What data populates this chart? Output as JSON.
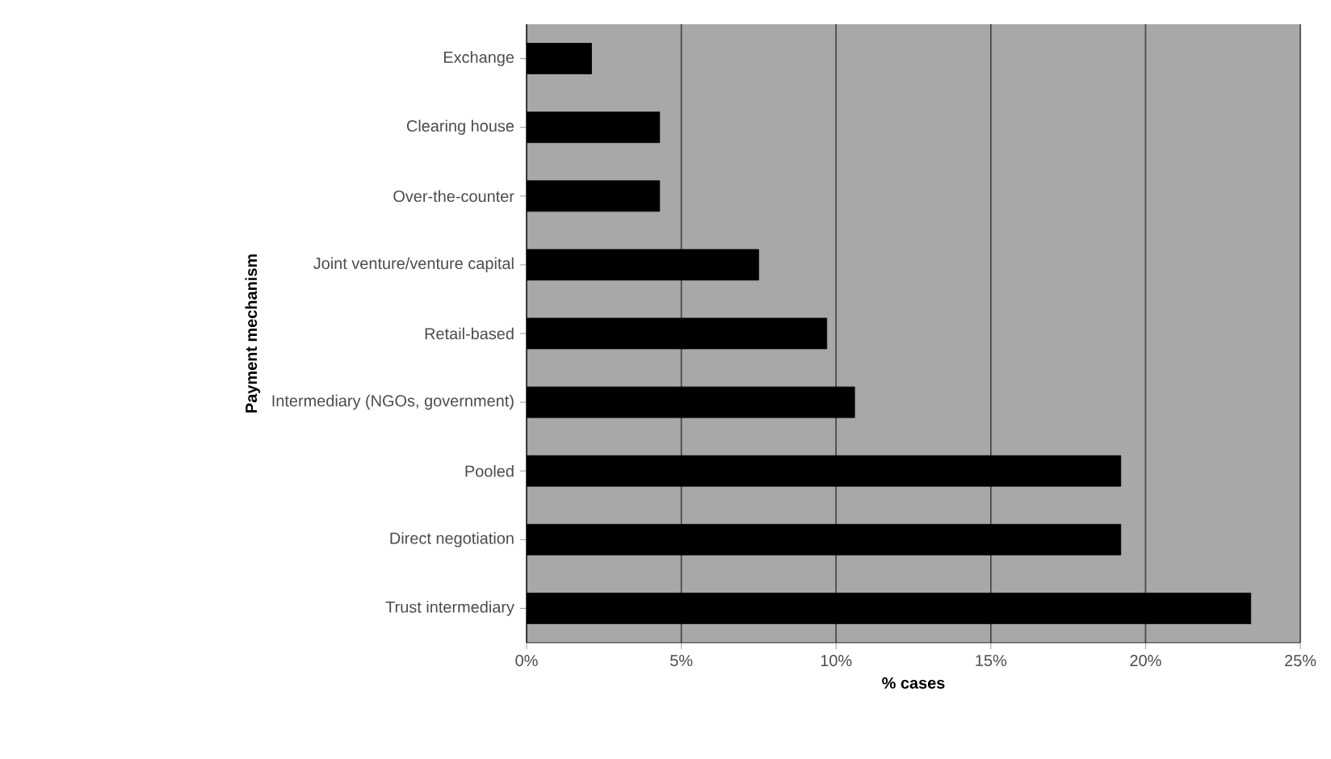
{
  "chart_data": {
    "type": "bar",
    "orientation": "horizontal",
    "xlabel": "% cases",
    "ylabel": "Payment mechanism",
    "categories": [
      "Exchange",
      "Clearing house",
      "Over-the-counter",
      "Joint venture/venture capital",
      "Retail-based",
      "Intermediary (NGOs, government)",
      "Pooled",
      "Direct negotiation",
      "Trust intermediary"
    ],
    "values": [
      2.1,
      4.3,
      4.3,
      7.5,
      9.7,
      10.6,
      19.2,
      19.2,
      23.4
    ],
    "color": "#000000",
    "xlim": [
      0,
      25
    ],
    "xticks": [
      {
        "value": 0,
        "label": "0%"
      },
      {
        "value": 5,
        "label": "5%"
      },
      {
        "value": 10,
        "label": "10%"
      },
      {
        "value": 15,
        "label": "15%"
      },
      {
        "value": 20,
        "label": "20%"
      },
      {
        "value": 25,
        "label": "25%"
      }
    ],
    "grid": "x"
  }
}
